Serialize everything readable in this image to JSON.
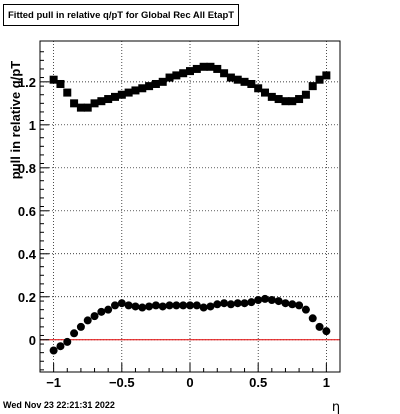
{
  "chart_data": {
    "type": "scatter",
    "title": "Fitted pull in relative q/pT for Global Rec All EtapT",
    "xlabel": "η",
    "ylabel": "pull in relative q/pT",
    "xlim": [
      -1.1,
      1.1
    ],
    "ylim": [
      -0.15,
      1.39
    ],
    "grid": true,
    "x_ticks": [
      -1,
      -0.5,
      0,
      0.5,
      1
    ],
    "x_tick_labels": [
      "−1",
      "−0.5",
      "0",
      "0.5",
      "1"
    ],
    "y_ticks": [
      0,
      0.2,
      0.4,
      0.6,
      0.8,
      1,
      1.2
    ],
    "y_tick_labels": [
      "0",
      "0.2",
      "0.4",
      "0.6",
      "0.8",
      "1",
      "1.2"
    ],
    "reference_line": {
      "y": 0,
      "color": "#e00000"
    },
    "x": [
      -1.0,
      -0.95,
      -0.9,
      -0.85,
      -0.8,
      -0.75,
      -0.7,
      -0.65,
      -0.6,
      -0.55,
      -0.5,
      -0.45,
      -0.4,
      -0.35,
      -0.3,
      -0.25,
      -0.2,
      -0.15,
      -0.1,
      -0.05,
      0.0,
      0.05,
      0.1,
      0.15,
      0.2,
      0.25,
      0.3,
      0.35,
      0.4,
      0.45,
      0.5,
      0.55,
      0.6,
      0.65,
      0.7,
      0.75,
      0.8,
      0.85,
      0.9,
      0.95,
      1.0
    ],
    "series": [
      {
        "marker": "square",
        "color": "#000000",
        "values": [
          1.21,
          1.19,
          1.15,
          1.1,
          1.08,
          1.08,
          1.1,
          1.11,
          1.12,
          1.13,
          1.14,
          1.15,
          1.16,
          1.17,
          1.18,
          1.19,
          1.2,
          1.22,
          1.23,
          1.24,
          1.25,
          1.26,
          1.27,
          1.27,
          1.26,
          1.24,
          1.22,
          1.21,
          1.2,
          1.19,
          1.17,
          1.15,
          1.13,
          1.12,
          1.11,
          1.11,
          1.12,
          1.14,
          1.18,
          1.21,
          1.23
        ]
      },
      {
        "marker": "circle",
        "color": "#000000",
        "values": [
          -0.05,
          -0.03,
          -0.01,
          0.03,
          0.06,
          0.09,
          0.11,
          0.13,
          0.14,
          0.16,
          0.17,
          0.16,
          0.155,
          0.15,
          0.155,
          0.16,
          0.155,
          0.16,
          0.16,
          0.16,
          0.16,
          0.16,
          0.15,
          0.155,
          0.165,
          0.17,
          0.165,
          0.17,
          0.17,
          0.175,
          0.185,
          0.19,
          0.185,
          0.18,
          0.17,
          0.165,
          0.16,
          0.14,
          0.1,
          0.06,
          0.04
        ]
      }
    ]
  },
  "footer": {
    "timestamp": "Wed Nov 23 22:21:31 2022"
  }
}
